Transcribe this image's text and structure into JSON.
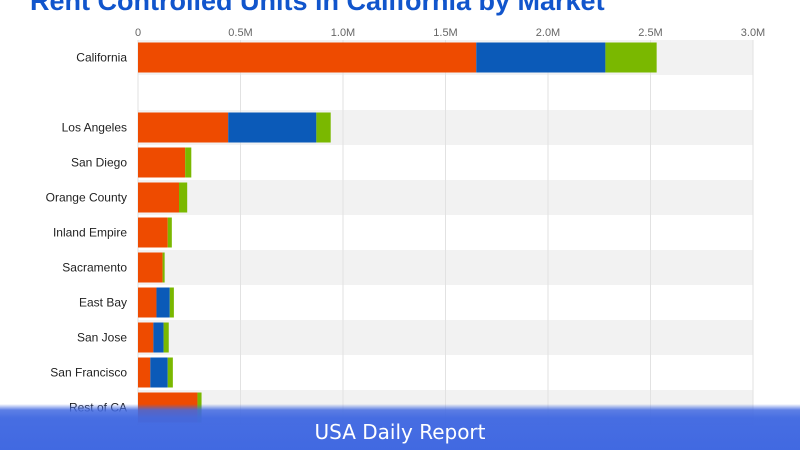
{
  "chart_data": {
    "type": "bar",
    "orientation": "horizontal",
    "stacked": true,
    "title": "Rent Controlled Units in California by Market",
    "categories": [
      "California",
      "",
      "Los Angeles",
      "San Diego",
      "Orange County",
      "Inland Empire",
      "Sacramento",
      "East Bay",
      "San Jose",
      "San Francisco",
      "Rest of CA"
    ],
    "series": [
      {
        "color": "#ee4b00",
        "values": [
          1.65,
          null,
          0.44,
          0.23,
          0.2,
          0.145,
          0.12,
          0.09,
          0.075,
          0.06,
          0.29
        ]
      },
      {
        "color": "#0b5ab8",
        "values": [
          0.63,
          null,
          0.43,
          0,
          0,
          0,
          0,
          0.065,
          0.05,
          0.085,
          0
        ]
      },
      {
        "color": "#7ab800",
        "values": [
          0.25,
          null,
          0.07,
          0.03,
          0.04,
          0.02,
          0.01,
          0.02,
          0.025,
          0.025,
          0.02
        ]
      }
    ],
    "xlim": [
      0,
      3.0
    ],
    "xunit": "M",
    "xticks": [
      "0",
      "0.5M",
      "1.0M",
      "1.5M",
      "2.0M",
      "2.5M",
      "3.0M"
    ],
    "grid": true,
    "legend": "none"
  },
  "banner": {
    "text": "USA Daily Report",
    "color": "#4169e1"
  }
}
